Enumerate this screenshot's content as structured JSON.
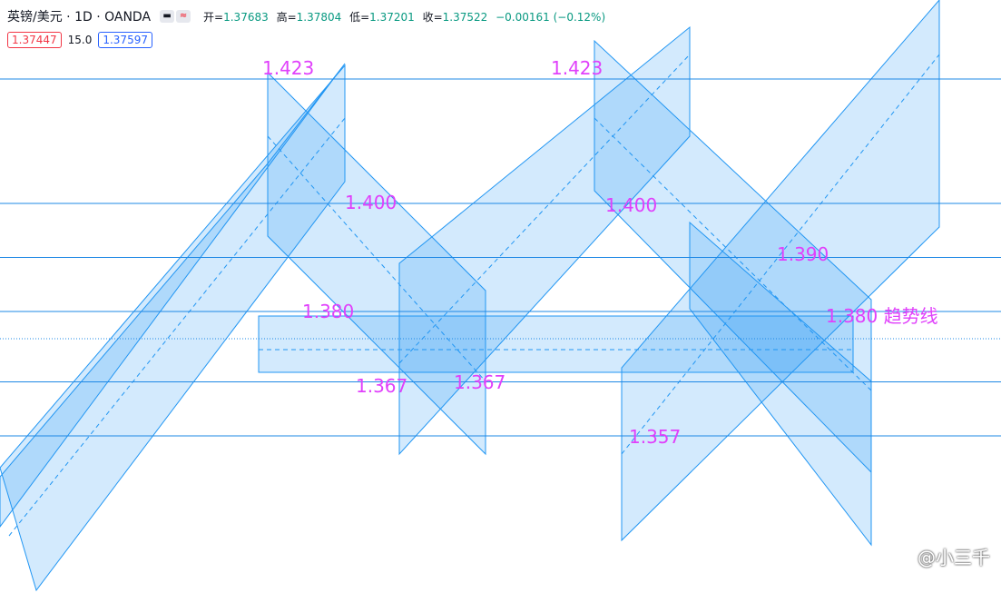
{
  "legend": {
    "symbol": "英镑/美元 · 1D · OANDA",
    "open_label": "开=",
    "open": "1.37683",
    "high_label": "高=",
    "high": "1.37804",
    "low_label": "低=",
    "low": "1.37201",
    "close_label": "收=",
    "close": "1.37522",
    "change": "−0.00161 (−0.12%)"
  },
  "quote": {
    "sell": "1.37447",
    "spread": "15.0",
    "buy": "1.37597"
  },
  "watermark": "@小三千",
  "colors": {
    "up": "#089981",
    "down": "#f23645",
    "channel": "#2196f3",
    "annotation": "#e040fb"
  },
  "chart_data": {
    "type": "candlestick",
    "title": "",
    "xlabel": "",
    "ylabel": "",
    "ylim": [
      1.339,
      1.43
    ],
    "grid": false,
    "price_levels": [
      1.423,
      1.4,
      1.39,
      1.38,
      1.367,
      1.357
    ],
    "annotations": [
      {
        "text": "1.423",
        "price": 1.423
      },
      {
        "text": "1.400",
        "price": 1.4
      },
      {
        "text": "1.380",
        "price": 1.38
      },
      {
        "text": "1.367",
        "price": 1.367
      },
      {
        "text": "1.367",
        "price": 1.367
      },
      {
        "text": "1.423",
        "price": 1.423
      },
      {
        "text": "1.400",
        "price": 1.4
      },
      {
        "text": "1.390",
        "price": 1.39
      },
      {
        "text": "1.380 趋势线",
        "price": 1.38
      },
      {
        "text": "1.357",
        "price": 1.357
      }
    ],
    "candles": []
  }
}
